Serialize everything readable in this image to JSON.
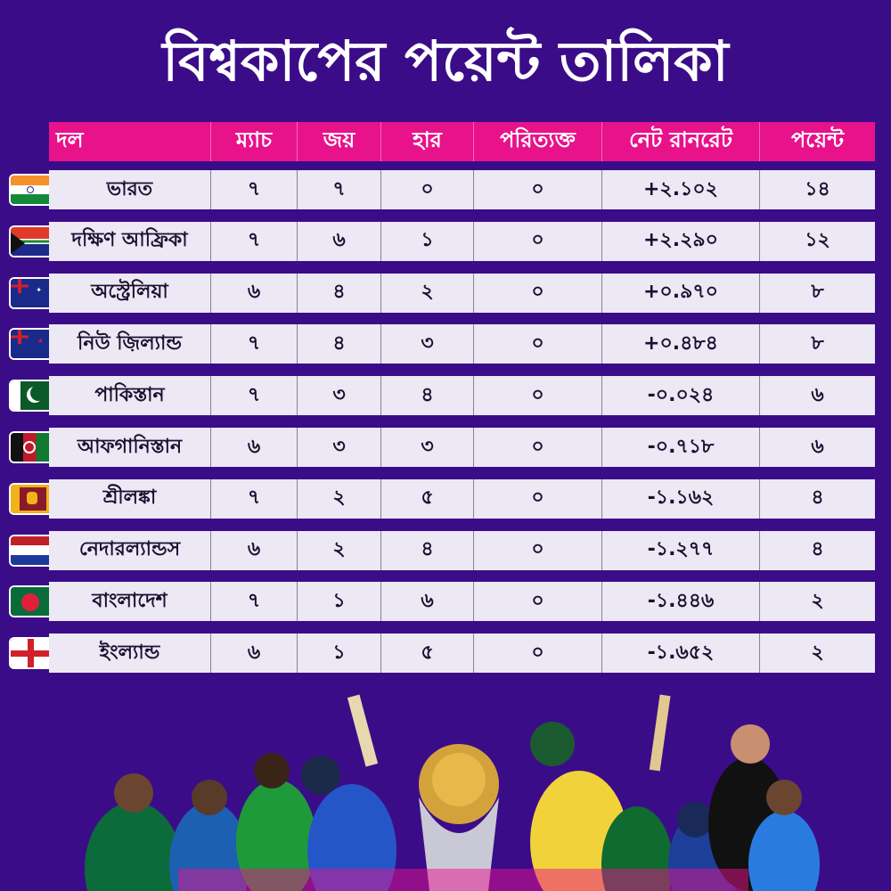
{
  "title": "বিশ্বকাপের পয়েন্ট তালিকা",
  "headers": [
    "দল",
    "ম্যাচ",
    "জয়",
    "হার",
    "পরিত্যক্ত",
    "নেট রানরেট",
    "পয়েন্ট"
  ],
  "rows": [
    {
      "team": "ভারত",
      "flag": "india-flag",
      "m": "৭",
      "w": "৭",
      "l": "০",
      "nr": "০",
      "nrr": "+২.১০২",
      "pts": "১৪"
    },
    {
      "team": "দক্ষিণ আফ্রিকা",
      "flag": "south-africa-flag",
      "m": "৭",
      "w": "৬",
      "l": "১",
      "nr": "০",
      "nrr": "+২.২৯০",
      "pts": "১২"
    },
    {
      "team": "অস্ট্রেলিয়া",
      "flag": "australia-flag",
      "m": "৬",
      "w": "৪",
      "l": "২",
      "nr": "০",
      "nrr": "+০.৯৭০",
      "pts": "৮"
    },
    {
      "team": "নিউ জ়িল্যান্ড",
      "flag": "new-zealand-flag",
      "m": "৭",
      "w": "৪",
      "l": "৩",
      "nr": "০",
      "nrr": "+০.৪৮৪",
      "pts": "৮"
    },
    {
      "team": "পাকিস্তান",
      "flag": "pakistan-flag",
      "m": "৭",
      "w": "৩",
      "l": "৪",
      "nr": "০",
      "nrr": "-০.০২৪",
      "pts": "৬"
    },
    {
      "team": "আফগানিস্তান",
      "flag": "afghanistan-flag",
      "m": "৬",
      "w": "৩",
      "l": "৩",
      "nr": "০",
      "nrr": "-০.৭১৮",
      "pts": "৬"
    },
    {
      "team": "শ্রীলঙ্কা",
      "flag": "sri-lanka-flag",
      "m": "৭",
      "w": "২",
      "l": "৫",
      "nr": "০",
      "nrr": "-১.১৬২",
      "pts": "৪"
    },
    {
      "team": "নেদারল্যান্ডস",
      "flag": "netherlands-flag",
      "m": "৬",
      "w": "২",
      "l": "৪",
      "nr": "০",
      "nrr": "-১.২৭৭",
      "pts": "৪"
    },
    {
      "team": "বাংলাদেশ",
      "flag": "bangladesh-flag",
      "m": "৭",
      "w": "১",
      "l": "৬",
      "nr": "০",
      "nrr": "-১.৪৪৬",
      "pts": "২"
    },
    {
      "team": "ইংল্যান্ড",
      "flag": "england-flag",
      "m": "৬",
      "w": "১",
      "l": "৫",
      "nr": "০",
      "nrr": "-১.৬৫২",
      "pts": "২"
    }
  ],
  "colors": {
    "background": "#3b0c88",
    "header": "#e8128b",
    "row": "#ece8f4"
  }
}
